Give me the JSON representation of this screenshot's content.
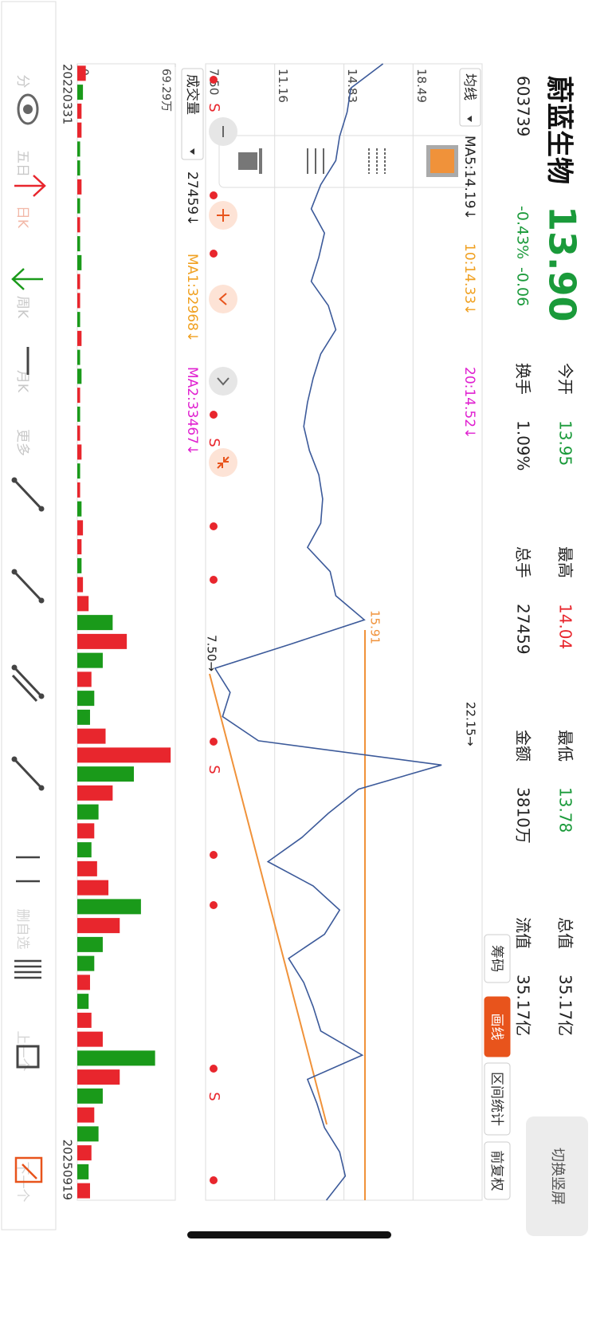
{
  "header": {
    "name": "蔚蓝生物",
    "code": "603739",
    "price": "13.90",
    "change_pct": "-0.43%",
    "change": "-0.06",
    "stats": [
      {
        "label": "今开",
        "value": "13.95",
        "color": "#1a9a3a"
      },
      {
        "label": "换手",
        "value": "1.09%",
        "color": "#222222"
      },
      {
        "label": "最高",
        "value": "14.04",
        "color": "#e8262d"
      },
      {
        "label": "总手",
        "value": "27459",
        "color": "#222222"
      },
      {
        "label": "最低",
        "value": "13.78",
        "color": "#1a9a3a"
      },
      {
        "label": "金额",
        "value": "3810万",
        "color": "#222222"
      },
      {
        "label": "总值",
        "value": "35.17亿",
        "color": "#222222"
      },
      {
        "label": "流值",
        "value": "35.17亿",
        "color": "#222222"
      }
    ],
    "switch_button": "切换竖屏",
    "tabs": [
      "筹码",
      "画线",
      "区间统计",
      "前复权"
    ],
    "active_tab": 1
  },
  "chart_data": [
    {
      "type": "line",
      "indicator_select": "均线",
      "ma_labels": [
        {
          "text": "MA5:14.19↓",
          "color": "#222222"
        },
        {
          "text": "10:14.33↓",
          "color": "#f0a020"
        },
        {
          "text": "20:14.52↓",
          "color": "#e020d0"
        }
      ],
      "values": [
        16.9,
        15.2,
        15.0,
        14.6,
        14.4,
        13.6,
        13.1,
        13.8,
        13.5,
        13.1,
        14.0,
        14.4,
        13.6,
        13.2,
        12.9,
        12.7,
        13.0,
        13.5,
        13.7,
        13.6,
        12.9,
        14.1,
        14.4,
        15.91,
        12.0,
        8.0,
        8.8,
        8.4,
        10.3,
        20.0,
        15.6,
        14.0,
        12.6,
        10.8,
        13.2,
        14.6,
        13.8,
        11.9,
        12.7,
        13.2,
        13.6,
        15.8,
        12.9,
        13.4,
        13.8,
        14.6,
        14.9,
        13.9
      ],
      "color": "#3c5a9a",
      "ylim": [
        7.5,
        22.15
      ],
      "yticks": [
        22.15,
        18.49,
        14.83,
        11.16,
        {
          "value": 7.5,
          "label": "7.50"
        }
      ],
      "grid": true,
      "annotations": [
        "22.15→",
        "15.91",
        "7.50→"
      ],
      "signals": [
        "S",
        "S",
        "S",
        "S"
      ]
    },
    {
      "type": "bar",
      "indicator_select": "成交量",
      "ma_labels": [
        {
          "text": "27459↓",
          "color": "#222222"
        },
        {
          "text": "MA1:32968↓",
          "color": "#f0a020"
        },
        {
          "text": "MA2:33467↓",
          "color": "#e020d0"
        }
      ],
      "values": [
        6,
        4,
        3,
        3,
        2,
        2,
        3,
        2,
        2,
        2,
        3,
        2,
        2,
        2,
        3,
        2,
        3,
        2,
        2,
        2,
        3,
        2,
        2,
        3,
        4,
        3,
        3,
        4,
        8,
        25,
        35,
        18,
        10,
        12,
        9,
        20,
        66,
        40,
        25,
        15,
        12,
        10,
        14,
        22,
        45,
        30,
        18,
        12,
        9,
        8,
        10,
        18,
        55,
        30,
        18,
        12,
        15,
        10,
        8,
        9
      ],
      "directions": [
        "up",
        "down",
        "up",
        "up",
        "down",
        "down",
        "up",
        "down",
        "up",
        "down",
        "down",
        "up",
        "up",
        "down",
        "up",
        "down",
        "down",
        "up",
        "down",
        "up",
        "up",
        "down",
        "up",
        "down",
        "up",
        "up",
        "down",
        "up",
        "up",
        "down",
        "up",
        "down",
        "up",
        "down",
        "down",
        "up",
        "up",
        "down",
        "up",
        "down",
        "up",
        "down",
        "up",
        "up",
        "down",
        "up",
        "down",
        "down",
        "up",
        "down",
        "up",
        "up",
        "down",
        "up",
        "down",
        "up",
        "down",
        "up",
        "down",
        "up"
      ],
      "up_color": "#e8262d",
      "down_color": "#1a9a1a",
      "ylim": [
        0,
        69.29
      ],
      "yticks": [
        0,
        {
          "value": 69.29,
          "label": "69.29万"
        }
      ],
      "x_labels": [
        "20220331",
        "20250919"
      ]
    }
  ],
  "toolbar": [
    "分",
    "五日",
    "日K",
    "周K",
    "月K",
    "更多",
    "删自选",
    "上一个",
    "下一个"
  ]
}
